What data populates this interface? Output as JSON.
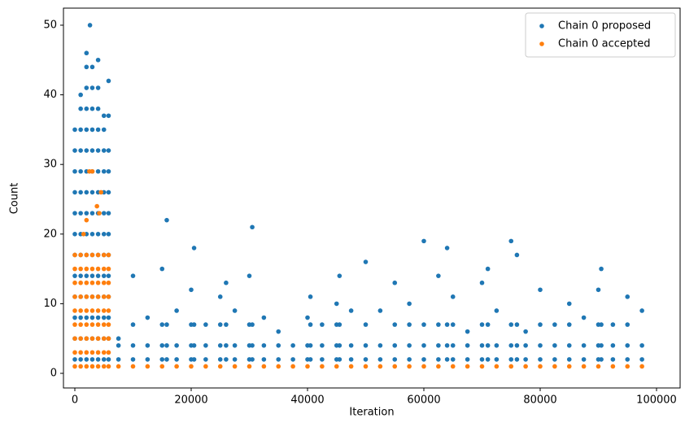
{
  "chart_data": {
    "type": "scatter",
    "xlabel": "Iteration",
    "ylabel": "Count",
    "xlim": [
      -1958,
      104056
    ],
    "ylim": [
      -2.1,
      52.45
    ],
    "xticks": [
      0,
      20000,
      40000,
      60000,
      80000,
      100000
    ],
    "yticks": [
      0,
      10,
      20,
      30,
      40,
      50
    ],
    "legend": "upper right",
    "series": [
      {
        "name": "Chain 0 proposed",
        "color": "#1f77b4",
        "x": [
          0,
          0,
          0,
          0,
          0,
          0,
          0,
          0,
          0,
          0,
          0,
          0,
          1000,
          1000,
          1000,
          1000,
          1000,
          1000,
          1000,
          1000,
          1000,
          1000,
          1000,
          1000,
          1000,
          1000,
          2000,
          2000,
          2000,
          2000,
          2000,
          2000,
          2000,
          2000,
          2000,
          2000,
          2000,
          2000,
          2000,
          2000,
          2000,
          2000,
          2600,
          3000,
          3000,
          3000,
          3000,
          3000,
          3000,
          3000,
          3000,
          3000,
          3000,
          3000,
          3000,
          3000,
          3000,
          3000,
          4000,
          4000,
          4000,
          4000,
          4000,
          4000,
          4000,
          4000,
          4000,
          4000,
          4000,
          4000,
          4000,
          4000,
          4000,
          5000,
          5000,
          5000,
          5000,
          5000,
          5000,
          5000,
          5000,
          5000,
          5000,
          5000,
          5000,
          5000,
          5800,
          5800,
          5800,
          5800,
          5800,
          5800,
          5800,
          5800,
          5800,
          5800,
          5800,
          5800,
          5800,
          7500,
          7500,
          7500,
          10000,
          10000,
          10000,
          10000,
          12500,
          12500,
          12500,
          15000,
          15000,
          15000,
          15000,
          15800,
          15800,
          15800,
          15800,
          17500,
          17500,
          17500,
          20000,
          20000,
          20000,
          20000,
          20500,
          20500,
          20500,
          20500,
          22500,
          22500,
          22500,
          25000,
          25000,
          25000,
          25000,
          26000,
          26000,
          26000,
          26000,
          27500,
          27500,
          27500,
          30000,
          30000,
          30000,
          30000,
          30500,
          30500,
          30500,
          30500,
          32500,
          32500,
          32500,
          35000,
          35000,
          35000,
          37500,
          37500,
          40000,
          40000,
          40000,
          40500,
          40500,
          40500,
          40500,
          42500,
          42500,
          42500,
          45000,
          45000,
          45000,
          45000,
          45500,
          45500,
          45500,
          45500,
          47500,
          47500,
          47500,
          50000,
          50000,
          50000,
          50000,
          52500,
          52500,
          52500,
          55000,
          55000,
          55000,
          55000,
          57500,
          57500,
          57500,
          57500,
          60000,
          60000,
          60000,
          60000,
          62500,
          62500,
          62500,
          62500,
          64000,
          64000,
          64000,
          64000,
          65000,
          65000,
          65000,
          65000,
          67500,
          67500,
          67500,
          70000,
          70000,
          70000,
          70000,
          71000,
          71000,
          71000,
          71000,
          72500,
          72500,
          72500,
          75000,
          75000,
          75000,
          75000,
          76000,
          76000,
          76000,
          76000,
          77500,
          77500,
          77500,
          80000,
          80000,
          80000,
          80000,
          82500,
          82500,
          82500,
          85000,
          85000,
          85000,
          85000,
          87500,
          87500,
          87500,
          90000,
          90000,
          90000,
          90000,
          90500,
          90500,
          90500,
          90500,
          92500,
          92500,
          92500,
          95000,
          95000,
          95000,
          95000,
          97500,
          97500,
          97500
        ],
        "values": [
          2,
          5,
          8,
          11,
          14,
          17,
          20,
          23,
          26,
          29,
          32,
          35,
          2,
          5,
          8,
          11,
          14,
          17,
          20,
          23,
          26,
          29,
          32,
          35,
          38,
          40,
          2,
          5,
          8,
          11,
          14,
          17,
          20,
          23,
          26,
          29,
          32,
          35,
          38,
          41,
          44,
          46,
          50,
          2,
          5,
          8,
          11,
          14,
          17,
          20,
          23,
          26,
          29,
          32,
          35,
          38,
          41,
          44,
          2,
          5,
          8,
          11,
          14,
          17,
          20,
          23,
          26,
          29,
          32,
          35,
          38,
          41,
          45,
          2,
          5,
          8,
          11,
          14,
          17,
          20,
          23,
          26,
          29,
          32,
          35,
          37,
          2,
          5,
          8,
          11,
          14,
          17,
          20,
          23,
          26,
          29,
          32,
          37,
          42,
          2,
          4,
          5,
          2,
          4,
          7,
          14,
          2,
          4,
          8,
          2,
          4,
          7,
          15,
          2,
          4,
          7,
          22,
          2,
          4,
          9,
          2,
          4,
          7,
          12,
          2,
          4,
          7,
          18,
          2,
          4,
          7,
          2,
          4,
          7,
          11,
          2,
          4,
          7,
          13,
          2,
          4,
          9,
          2,
          4,
          7,
          14,
          2,
          4,
          7,
          21,
          2,
          4,
          8,
          2,
          4,
          6,
          2,
          4,
          2,
          4,
          8,
          2,
          4,
          7,
          11,
          2,
          4,
          7,
          2,
          4,
          7,
          10,
          2,
          4,
          7,
          14,
          2,
          4,
          9,
          2,
          4,
          7,
          16,
          2,
          4,
          9,
          2,
          4,
          7,
          13,
          2,
          4,
          7,
          10,
          2,
          4,
          7,
          19,
          2,
          4,
          7,
          14,
          2,
          4,
          7,
          18,
          2,
          4,
          7,
          11,
          2,
          4,
          6,
          2,
          4,
          7,
          13,
          2,
          4,
          7,
          15,
          2,
          4,
          9,
          2,
          4,
          7,
          19,
          2,
          4,
          7,
          17,
          2,
          4,
          6,
          2,
          4,
          7,
          12,
          2,
          4,
          7,
          2,
          4,
          7,
          10,
          2,
          4,
          8,
          2,
          4,
          7,
          12,
          2,
          4,
          7,
          15,
          2,
          4,
          7,
          2,
          4,
          7,
          11,
          2,
          4,
          9
        ]
      },
      {
        "name": "Chain 0 accepted",
        "color": "#ff7f0e",
        "x": [
          0,
          0,
          0,
          0,
          0,
          0,
          0,
          0,
          0,
          1000,
          1000,
          1000,
          1000,
          1000,
          1000,
          1000,
          1000,
          1000,
          2000,
          2000,
          2000,
          2000,
          2000,
          2000,
          2000,
          2000,
          2000,
          3000,
          3000,
          3000,
          3000,
          3000,
          3000,
          3000,
          3000,
          3000,
          4000,
          4000,
          4000,
          4000,
          4000,
          4000,
          4000,
          4000,
          4000,
          5000,
          5000,
          5000,
          5000,
          5000,
          5000,
          5000,
          5000,
          5000,
          5800,
          5800,
          5800,
          5800,
          5800,
          5800,
          5800,
          5800,
          5800,
          1500,
          2000,
          2500,
          3000,
          3800,
          4200,
          4500,
          7500,
          10000,
          12500,
          15000,
          17500,
          20000,
          22500,
          25000,
          27500,
          30000,
          32500,
          35000,
          37500,
          40000,
          42500,
          45000,
          47500,
          50000,
          52500,
          55000,
          57500,
          60000,
          62500,
          65000,
          67500,
          70000,
          72500,
          75000,
          77500,
          80000,
          82500,
          85000,
          87500,
          90000,
          92500,
          95000,
          97500
        ],
        "values": [
          1,
          3,
          5,
          7,
          9,
          11,
          13,
          15,
          17,
          1,
          3,
          5,
          7,
          9,
          11,
          13,
          15,
          17,
          1,
          3,
          5,
          7,
          9,
          11,
          13,
          15,
          17,
          1,
          3,
          5,
          7,
          9,
          11,
          13,
          15,
          17,
          1,
          3,
          5,
          7,
          9,
          11,
          13,
          15,
          17,
          1,
          3,
          5,
          7,
          9,
          11,
          13,
          15,
          17,
          1,
          3,
          5,
          7,
          9,
          11,
          13,
          15,
          17,
          20,
          22,
          29,
          29,
          24,
          23,
          26,
          1,
          1,
          1,
          1,
          1,
          1,
          1,
          1,
          1,
          1,
          1,
          1,
          1,
          1,
          1,
          1,
          1,
          1,
          1,
          1,
          1,
          1,
          1,
          1,
          1,
          1,
          1,
          1,
          1,
          1,
          1,
          1,
          1,
          1,
          1,
          1,
          1
        ]
      }
    ]
  }
}
